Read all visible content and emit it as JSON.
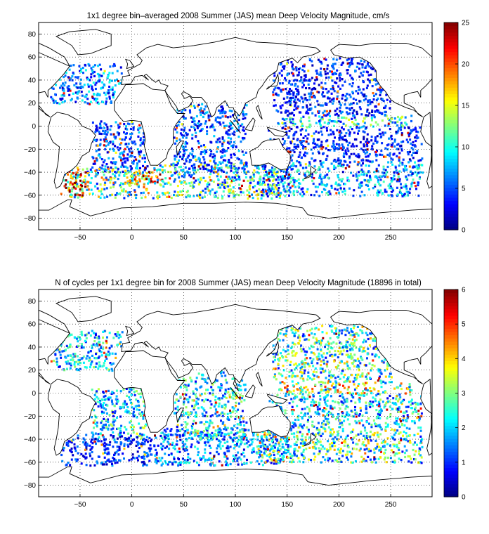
{
  "chart_data": [
    {
      "type": "heatmap",
      "title": "1x1 degree bin–averaged 2008 Summer (JAS) mean Deep Velocity Magnitude, cm/s",
      "xlabel": "",
      "ylabel": "",
      "xlim": [
        -90,
        290
      ],
      "ylim": [
        -90,
        90
      ],
      "x_ticks": [
        -50,
        0,
        50,
        100,
        150,
        200,
        250
      ],
      "y_ticks": [
        80,
        60,
        40,
        20,
        0,
        -20,
        -40,
        -60,
        -80
      ],
      "grid": true,
      "colormap": "jet",
      "clim": [
        0,
        25
      ],
      "colorbar_ticks": [
        0,
        5,
        10,
        15,
        20,
        25
      ],
      "colorbar_location": "right",
      "regions": [
        {
          "x": [
            -80,
            -10
          ],
          "y": [
            20,
            55
          ],
          "value": 6
        },
        {
          "x": [
            -40,
            15
          ],
          "y": [
            -40,
            5
          ],
          "value": 5
        },
        {
          "x": [
            -70,
            20
          ],
          "y": [
            -62,
            -35
          ],
          "value": 12
        },
        {
          "x": [
            -65,
            -45
          ],
          "y": [
            -60,
            -35
          ],
          "value": 20
        },
        {
          "x": [
            10,
            30
          ],
          "y": [
            -50,
            -35
          ],
          "value": 18
        },
        {
          "x": [
            20,
            150
          ],
          "y": [
            -62,
            -30
          ],
          "value": 10
        },
        {
          "x": [
            40,
            110
          ],
          "y": [
            -40,
            20
          ],
          "value": 5
        },
        {
          "x": [
            120,
            280
          ],
          "y": [
            -60,
            -30
          ],
          "value": 7
        },
        {
          "x": [
            130,
            280
          ],
          "y": [
            -30,
            0
          ],
          "value": 4
        },
        {
          "x": [
            140,
            270
          ],
          "y": [
            0,
            10
          ],
          "value": 9
        },
        {
          "x": [
            135,
            250
          ],
          "y": [
            10,
            60
          ],
          "value": 4
        }
      ]
    },
    {
      "type": "heatmap",
      "title": "N of cycles per 1x1 degree bin for 2008 Summer (JAS) mean Deep Velocity Magnitude (18896 in total)",
      "xlabel": "",
      "ylabel": "",
      "xlim": [
        -90,
        290
      ],
      "ylim": [
        -90,
        90
      ],
      "x_ticks": [
        -50,
        0,
        50,
        100,
        150,
        200,
        250
      ],
      "y_ticks": [
        80,
        60,
        40,
        20,
        0,
        -20,
        -40,
        -60,
        -80
      ],
      "grid": true,
      "colormap": "jet",
      "clim": [
        0,
        6
      ],
      "colorbar_ticks": [
        0,
        1,
        2,
        3,
        4,
        5,
        6
      ],
      "colorbar_location": "right",
      "total_cycles": 18896,
      "regions": [
        {
          "x": [
            -80,
            -10
          ],
          "y": [
            20,
            55
          ],
          "value": 2
        },
        {
          "x": [
            -40,
            15
          ],
          "y": [
            -40,
            5
          ],
          "value": 2
        },
        {
          "x": [
            -70,
            20
          ],
          "y": [
            -62,
            -35
          ],
          "value": 1
        },
        {
          "x": [
            20,
            150
          ],
          "y": [
            -62,
            -30
          ],
          "value": 1.5
        },
        {
          "x": [
            40,
            110
          ],
          "y": [
            -40,
            20
          ],
          "value": 2
        },
        {
          "x": [
            120,
            280
          ],
          "y": [
            -60,
            -30
          ],
          "value": 2.5
        },
        {
          "x": [
            130,
            280
          ],
          "y": [
            -30,
            0
          ],
          "value": 2
        },
        {
          "x": [
            140,
            270
          ],
          "y": [
            0,
            10
          ],
          "value": 3
        },
        {
          "x": [
            135,
            250
          ],
          "y": [
            10,
            60
          ],
          "value": 2.5
        }
      ]
    }
  ]
}
